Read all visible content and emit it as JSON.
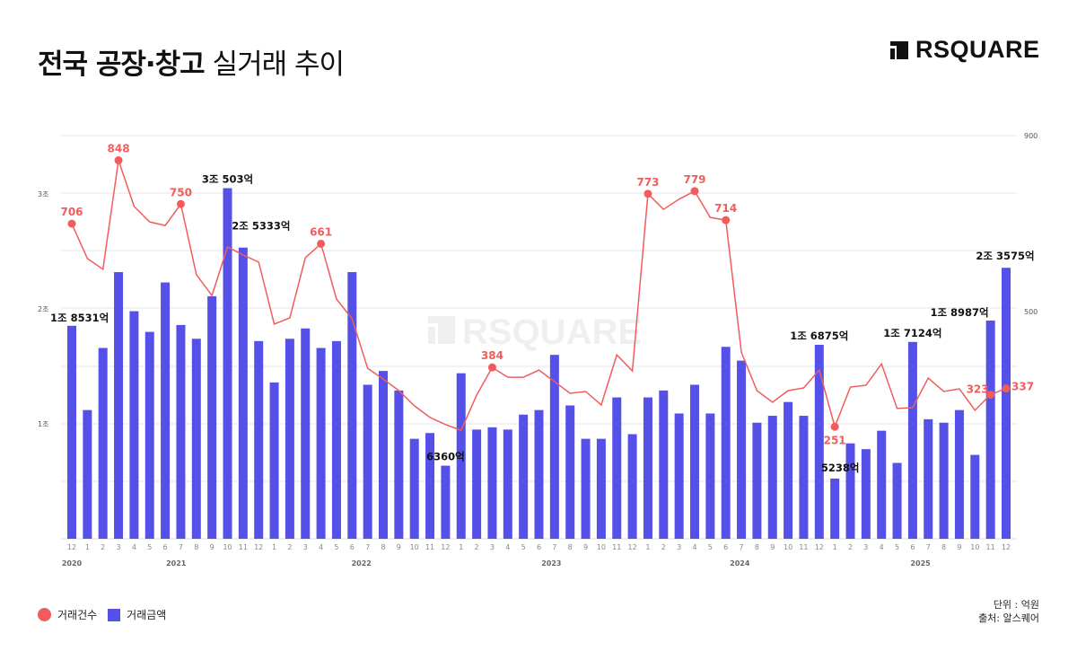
{
  "header": {
    "title_bold": "전국 공장·창고",
    "title_light": "실거래 추이",
    "logo_text": "RSQUARE"
  },
  "watermark": "RSQUARE",
  "legend": {
    "line_label": "거래건수",
    "bar_label": "거래금액"
  },
  "footer": {
    "unit": "단위 : 억원",
    "source": "출처: 알스퀘어"
  },
  "colors": {
    "bar": "#5550e8",
    "line": "#f25c5c",
    "grid": "#e4e4e4",
    "label_dark": "#111111"
  },
  "chart_data": {
    "type": "bar+line",
    "title": "전국 공장·창고 실거래 추이",
    "unit": "억원",
    "years": [
      {
        "label": "2020",
        "index": 0
      },
      {
        "label": "2021",
        "index": 6.7
      },
      {
        "label": "2022",
        "index": 18.6
      },
      {
        "label": "2023",
        "index": 30.8
      },
      {
        "label": "2024",
        "index": 42.9
      },
      {
        "label": "2025",
        "index": 54.5
      }
    ],
    "categories": [
      "12",
      "1",
      "2",
      "3",
      "4",
      "5",
      "6",
      "7",
      "8",
      "9",
      "10",
      "11",
      "12",
      "1",
      "2",
      "3",
      "4",
      "5",
      "6",
      "7",
      "8",
      "9",
      "10",
      "11",
      "12",
      "1",
      "2",
      "3",
      "4",
      "5",
      "6",
      "7",
      "8",
      "9",
      "10",
      "11",
      "12",
      "1",
      "2",
      "3",
      "4",
      "5",
      "6",
      "7",
      "8",
      "9",
      "10",
      "11",
      "12",
      "1",
      "2",
      "3",
      "4",
      "5",
      "6",
      "7",
      "8",
      "9",
      "10",
      "11",
      "12"
    ],
    "periods": [
      "2020-12",
      "2021-01",
      "2021-02",
      "2021-03",
      "2021-04",
      "2021-05",
      "2021-06",
      "2021-07",
      "2021-08",
      "2021-09",
      "2021-10",
      "2021-11",
      "2021-12",
      "2022-01",
      "2022-02",
      "2022-03",
      "2022-04",
      "2022-05",
      "2022-06",
      "2022-07",
      "2022-08",
      "2022-09",
      "2022-10",
      "2022-11",
      "2022-12",
      "2023-01",
      "2023-02",
      "2023-03",
      "2023-04",
      "2023-05",
      "2023-06",
      "2023-07",
      "2023-08",
      "2023-09",
      "2023-10",
      "2023-11",
      "2023-12",
      "2024-01",
      "2024-02",
      "2024-03",
      "2024-04",
      "2024-05",
      "2024-06",
      "2024-07",
      "2024-08",
      "2024-09",
      "2024-10",
      "2024-11",
      "2024-12",
      "2025-01",
      "2025-02",
      "2025-03",
      "2025-04",
      "2025-05",
      "2025-06",
      "2025-07",
      "2025-08",
      "2025-09",
      "2025-10",
      "2025-11",
      "2025-12"
    ],
    "series": [
      {
        "name": "거래금액",
        "type": "bar",
        "axis": "left",
        "unit": "억원",
        "values": [
          18531,
          11200,
          16600,
          23200,
          19800,
          18000,
          22300,
          18600,
          17400,
          21100,
          30503,
          25333,
          17200,
          13600,
          17400,
          18300,
          16600,
          17200,
          23200,
          13400,
          14600,
          12900,
          8700,
          9200,
          6360,
          14400,
          9500,
          9700,
          9500,
          10800,
          11200,
          16000,
          11600,
          8700,
          8700,
          12300,
          9100,
          12300,
          12900,
          10900,
          13400,
          10900,
          16700,
          15500,
          10100,
          10700,
          11900,
          10700,
          16875,
          5238,
          8300,
          7800,
          9400,
          6600,
          17124,
          10400,
          10100,
          11200,
          7300,
          18987,
          23575
        ]
      },
      {
        "name": "거래건수",
        "type": "line",
        "axis": "right",
        "values": [
          706,
          628,
          604,
          848,
          745,
          710,
          702,
          750,
          592,
          545,
          654,
          636,
          620,
          481,
          495,
          630,
          661,
          537,
          493,
          382,
          358,
          332,
          298,
          272,
          256,
          243,
          322,
          384,
          362,
          362,
          378,
          352,
          326,
          330,
          300,
          412,
          376,
          773,
          738,
          761,
          779,
          720,
          714,
          418,
          332,
          306,
          332,
          338,
          378,
          251,
          340,
          344,
          392,
          292,
          294,
          360,
          330,
          336,
          288,
          323,
          337
        ]
      }
    ],
    "bar_annotations": [
      {
        "index": 0,
        "text": "1조 8531억"
      },
      {
        "index": 10,
        "text": "3조 503억"
      },
      {
        "index": 11,
        "text": "2조 5333억"
      },
      {
        "index": 24,
        "text": "6360억"
      },
      {
        "index": 48,
        "text": "1조 6875억"
      },
      {
        "index": 49,
        "text": "5238억"
      },
      {
        "index": 54,
        "text": "1조 7124억"
      },
      {
        "index": 59,
        "text": "1조 8987억"
      },
      {
        "index": 60,
        "text": "2조 3575억"
      }
    ],
    "line_annotations": [
      {
        "index": 0,
        "text": "706"
      },
      {
        "index": 3,
        "text": "848"
      },
      {
        "index": 7,
        "text": "750"
      },
      {
        "index": 16,
        "text": "661"
      },
      {
        "index": 27,
        "text": "384"
      },
      {
        "index": 37,
        "text": "773"
      },
      {
        "index": 40,
        "text": "779"
      },
      {
        "index": 42,
        "text": "714"
      },
      {
        "index": 49,
        "text": "251"
      },
      {
        "index": 59,
        "text": "323"
      },
      {
        "index": 60,
        "text": "337"
      }
    ],
    "left_axis": {
      "ticks": [
        {
          "value": 10000,
          "label": "1조"
        },
        {
          "value": 20000,
          "label": "2조"
        },
        {
          "value": 30000,
          "label": "3조"
        }
      ],
      "range": [
        0,
        35000
      ]
    },
    "right_axis": {
      "ticks": [
        {
          "value": 500,
          "label": "500"
        },
        {
          "value": 900,
          "label": "900"
        }
      ],
      "range": [
        0,
        900
      ]
    },
    "grid": true,
    "legend_position": "bottom-left"
  }
}
